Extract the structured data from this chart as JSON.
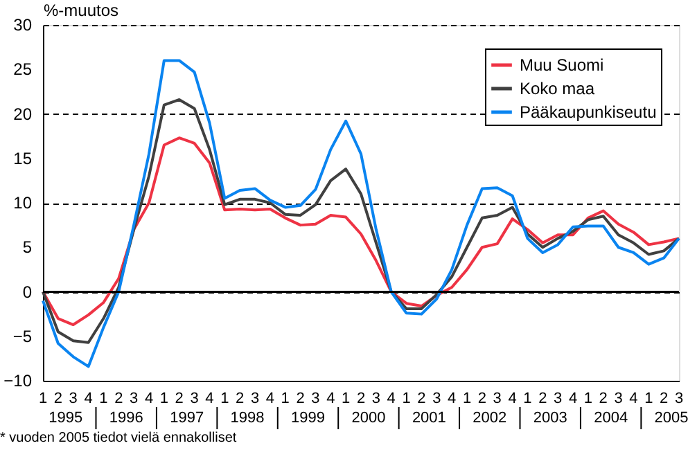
{
  "chart_data": {
    "type": "line",
    "ylabel": "%-muutos",
    "categories": [
      "1",
      "2",
      "3",
      "4",
      "1",
      "2",
      "3",
      "4",
      "1",
      "2",
      "3",
      "4",
      "1",
      "2",
      "3",
      "4",
      "1",
      "2",
      "3",
      "4",
      "1",
      "2",
      "3",
      "4",
      "1",
      "2",
      "3",
      "4",
      "1",
      "2",
      "3",
      "4",
      "1",
      "2",
      "3",
      "4",
      "1",
      "2",
      "3",
      "4",
      "1",
      "2",
      "3"
    ],
    "series": [
      {
        "name": "Muu Suomi",
        "color": "#ee3344",
        "values": [
          0,
          -3,
          -3.7,
          -2.6,
          -1.2,
          1.5,
          7,
          10,
          16.5,
          17.3,
          16.7,
          14.5,
          9.2,
          9.3,
          9.2,
          9.3,
          8.3,
          7.5,
          7.6,
          8.6,
          8.4,
          6.5,
          3.5,
          0,
          -1.3,
          -1.6,
          -0.4,
          0.5,
          2.5,
          5,
          5.4,
          8.2,
          7,
          5.5,
          6.4,
          6.4,
          8.3,
          9.1,
          7.6,
          6.7,
          5.3,
          5.6,
          6.0
        ]
      },
      {
        "name": "Koko maa",
        "color": "#404040",
        "values": [
          0,
          -4.5,
          -5.5,
          -5.7,
          -3,
          0.5,
          7,
          13,
          21,
          21.6,
          20.6,
          16,
          9.8,
          10.4,
          10.4,
          10,
          8.7,
          8.6,
          9.8,
          12.5,
          13.8,
          11,
          5.5,
          0,
          -1.9,
          -1.9,
          -0.3,
          1.7,
          5,
          8.3,
          8.6,
          9.5,
          6.5,
          5,
          6,
          6.8,
          8.1,
          8.5,
          6.4,
          5.5,
          4.2,
          4.6,
          6.0
        ]
      },
      {
        "name": "Pääkaupunkiseutu",
        "color": "#0a84f0",
        "values": [
          -1,
          -5.8,
          -7.3,
          -8.4,
          -4,
          0,
          7.5,
          15.5,
          26,
          26,
          24.7,
          19,
          10.5,
          11.4,
          11.6,
          10.3,
          9.5,
          9.7,
          11.5,
          16,
          19.2,
          15.5,
          7,
          0,
          -2.4,
          -2.5,
          -0.8,
          2.5,
          7.5,
          11.6,
          11.7,
          10.8,
          6,
          4.4,
          5.3,
          7.3,
          7.4,
          7.4,
          5,
          4.4,
          3.1,
          3.8,
          6.0
        ]
      }
    ],
    "ylim": [
      -10,
      30
    ],
    "yticks": [
      -10,
      -5,
      0,
      5,
      10,
      15,
      20,
      25,
      30
    ],
    "grid": "y",
    "legend": "top right",
    "marker": "none",
    "line_style": "solid",
    "ref_lines": [
      {
        "axis": "y",
        "value": 0,
        "color": "#000000",
        "line_style": "solid"
      }
    ],
    "annotations": [
      "1995",
      "1996",
      "1997",
      "1998",
      "1999",
      "2000",
      "2001",
      "2002",
      "2003",
      "2004",
      "2005",
      "* vuoden 2005 tiedot vielä ennakolliset"
    ]
  }
}
